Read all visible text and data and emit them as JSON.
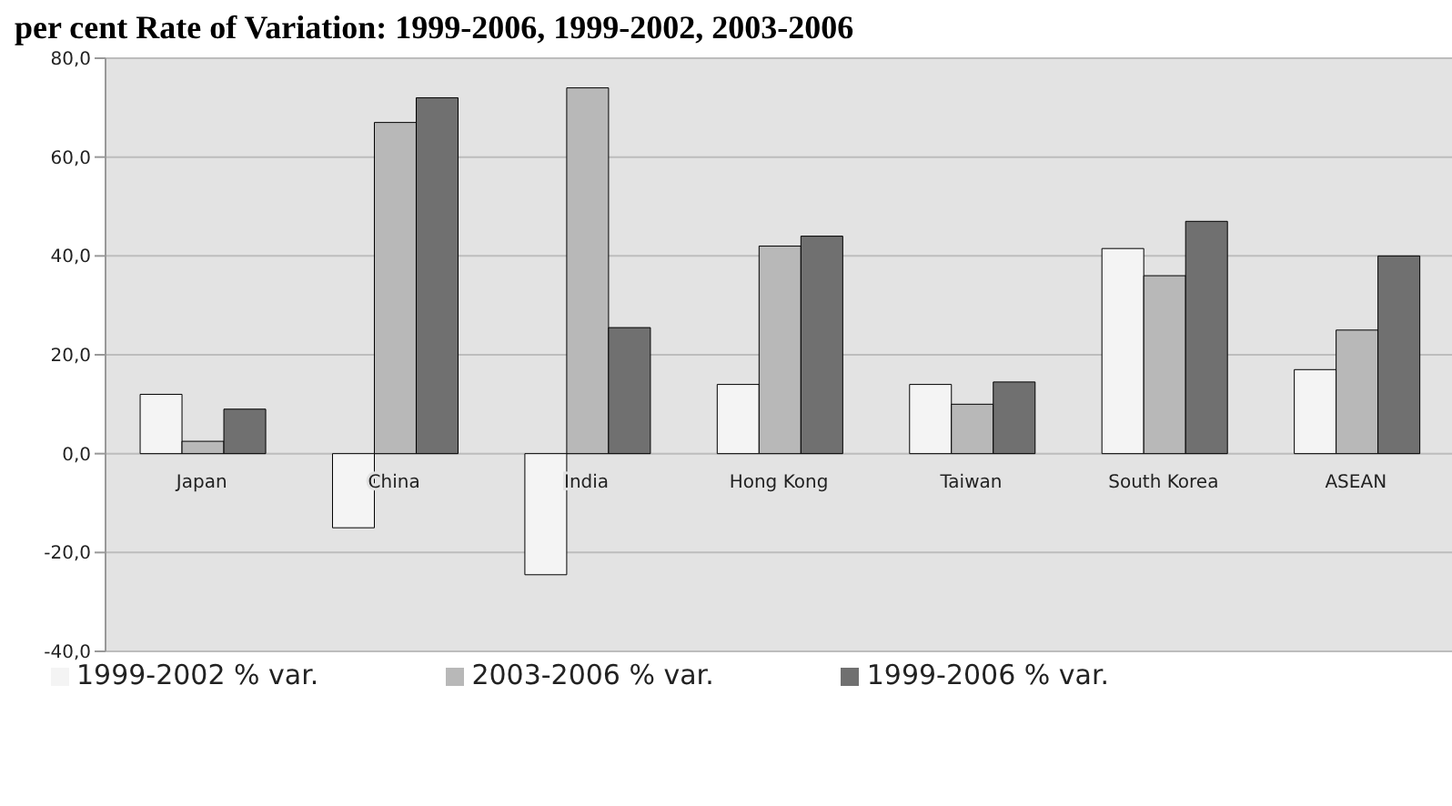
{
  "chart_data": {
    "type": "bar",
    "title": "per cent Rate of Variation: 1999-2006, 1999-2002, 2003-2006",
    "categories": [
      "Japan",
      "China",
      "India",
      "Hong Kong",
      "Taiwan",
      "South Korea",
      "ASEAN"
    ],
    "series": [
      {
        "name": "1999-2002 % var.",
        "color": "#f4f4f4",
        "values": [
          12,
          -15,
          -24.5,
          14,
          14,
          41.5,
          17
        ]
      },
      {
        "name": "2003-2006 % var.",
        "color": "#b8b8b8",
        "values": [
          2.5,
          67,
          74,
          42,
          10,
          36,
          25
        ]
      },
      {
        "name": "1999-2006 % var.",
        "color": "#707070",
        "values": [
          9,
          72,
          25.5,
          44,
          14.5,
          47,
          40
        ]
      }
    ],
    "ylim": [
      -40,
      80
    ],
    "yticks": [
      {
        "value": -40,
        "label": "-40,0"
      },
      {
        "value": -20,
        "label": "-20,0"
      },
      {
        "value": 0,
        "label": "0,0"
      },
      {
        "value": 20,
        "label": "20,0"
      },
      {
        "value": 40,
        "label": "40,0"
      },
      {
        "value": 60,
        "label": "60,0"
      },
      {
        "value": 80,
        "label": "80,0"
      }
    ],
    "grid": "y",
    "legend": "bottom"
  }
}
